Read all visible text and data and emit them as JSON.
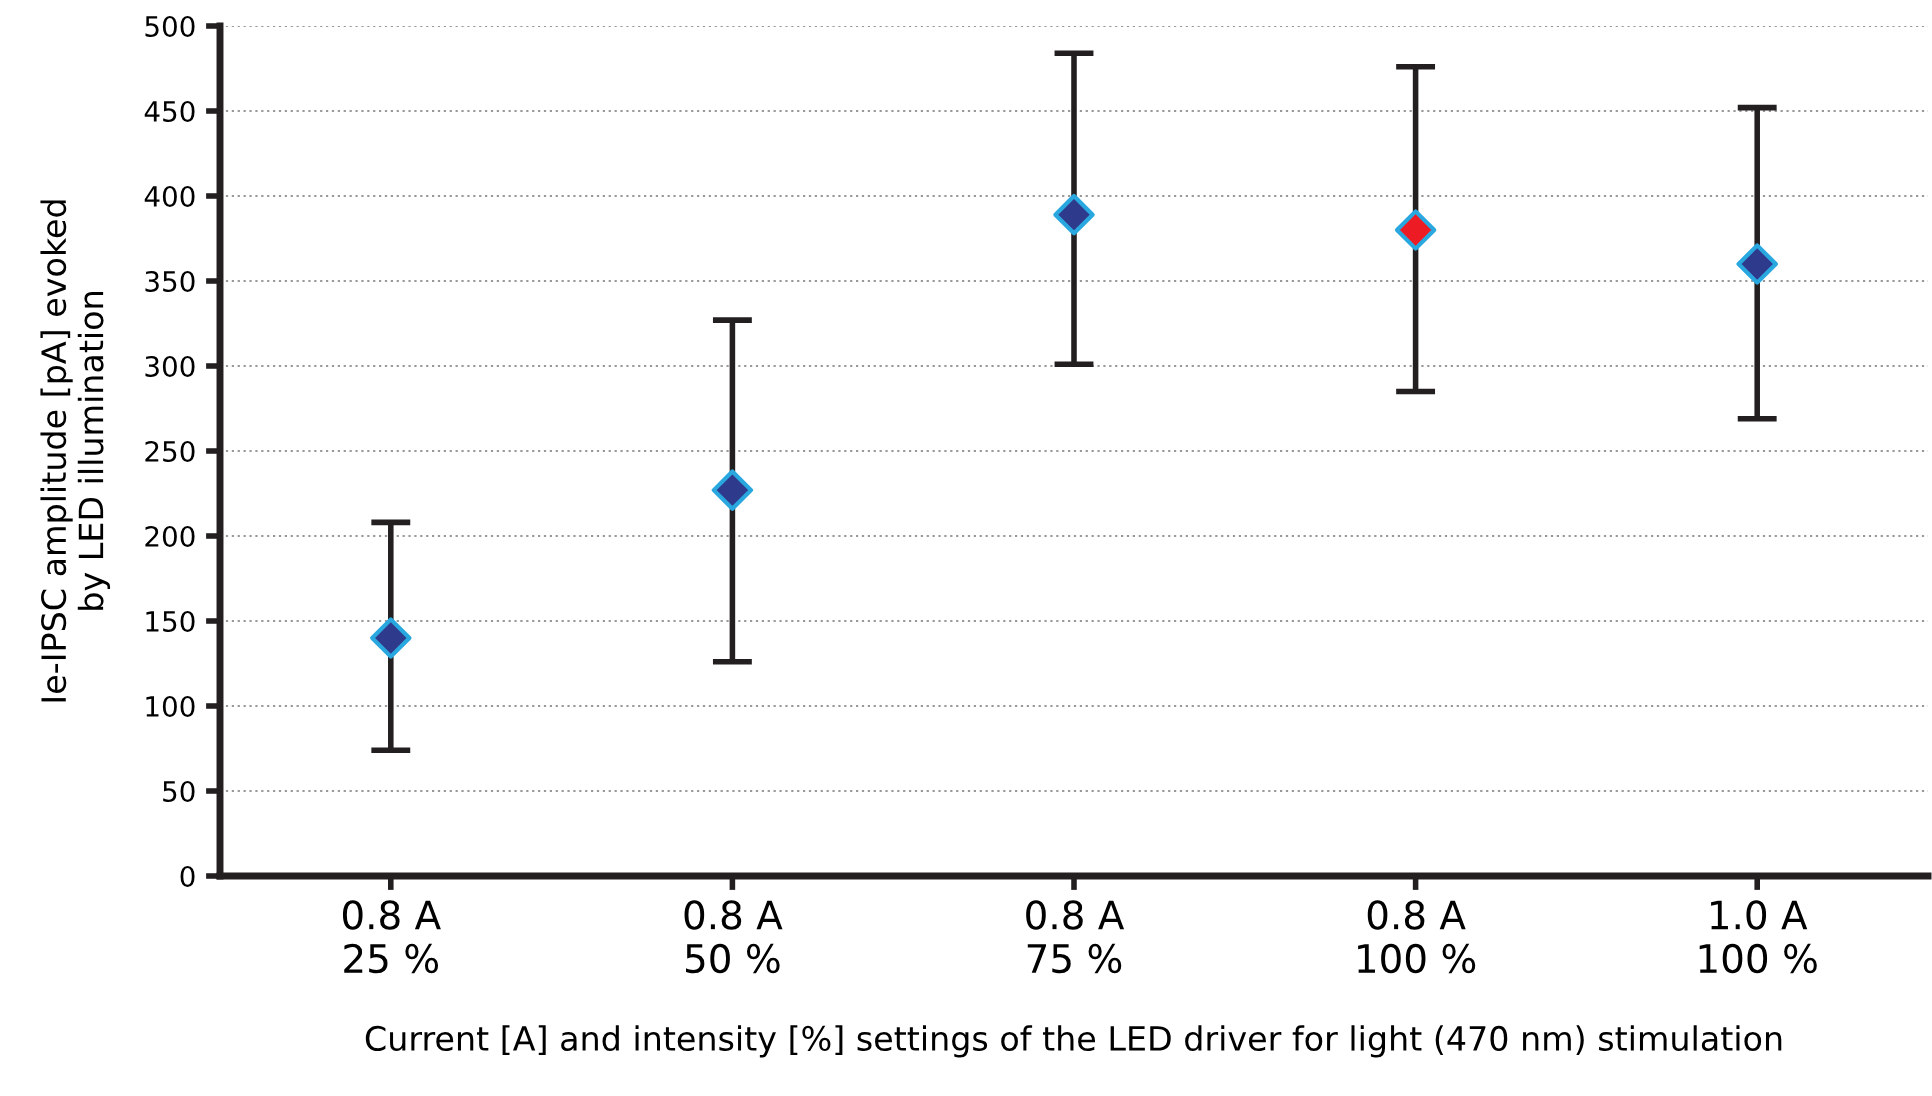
{
  "chart_data": {
    "type": "scatter",
    "categories": [
      "0.8 A\n25 %",
      "0.8 A\n50 %",
      "0.8 A\n75 %",
      "0.8 A\n100 %",
      "1.0 A\n100 %"
    ],
    "values": [
      140,
      227,
      389,
      380,
      360
    ],
    "errors": [
      [
        74,
        208
      ],
      [
        126,
        327
      ],
      [
        301,
        484
      ],
      [
        285,
        476
      ],
      [
        269,
        452
      ]
    ],
    "colors": [
      "#2e3a8c",
      "#2e3a8c",
      "#2e3a8c",
      "#ed1c24",
      "#2e3a8c"
    ],
    "marker": "diamond",
    "xlabel": "Current [A] and intensity [%] settings of the LED driver for light (470 nm) stimulation",
    "ylabel": "Ie-IPSC amplitude [pA] evoked\nby LED illumination",
    "ylim": [
      0,
      500
    ],
    "yticks": [
      0,
      50,
      100,
      150,
      200,
      250,
      300,
      350,
      400,
      450,
      500
    ],
    "grid": "y"
  }
}
